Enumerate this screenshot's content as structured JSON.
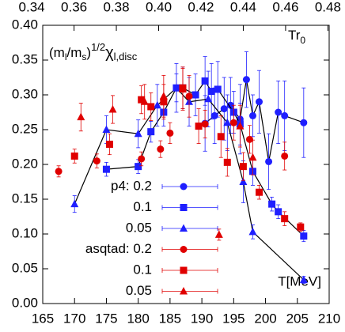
{
  "chart_data": {
    "type": "scatter",
    "xlim": [
      165,
      210
    ],
    "xticks": [
      165,
      170,
      175,
      180,
      185,
      190,
      195,
      200,
      205,
      210
    ],
    "x2lim": [
      0.3452,
      0.4806
    ],
    "x2ticks": [
      0.34,
      0.36,
      0.38,
      {
        "value": 0.4,
        "label": "0.40"
      },
      0.42,
      0.44,
      0.46,
      0.48
    ],
    "ylim": [
      0,
      0.4
    ],
    "yticks": [
      {
        "value": 0,
        "label": "0.00"
      },
      0.05,
      {
        "value": 0.1,
        "label": "0.10"
      },
      0.15,
      {
        "value": 0.2,
        "label": "0.20"
      },
      0.25,
      {
        "value": 0.3,
        "label": "0.30"
      },
      0.35,
      {
        "value": 0.4,
        "label": "0.40"
      }
    ],
    "y_label_parts": [
      "(m",
      "l",
      "/m",
      "s",
      ")",
      "1/2",
      "χ",
      "l,disc"
    ],
    "x2_label_parts": [
      "Tr",
      "0"
    ],
    "xlabel": "T[MeV]",
    "series": [
      {
        "name": "p4: 0.2",
        "color": "#1f1fff",
        "marker": "circle",
        "line_color": "#000000",
        "x": [
          190.5,
          192,
          193.5,
          194.5,
          196,
          197,
          198,
          199,
          200.5,
          202,
          203,
          206
        ],
        "values": [
          0.259,
          0.27,
          0.28,
          0.285,
          0.265,
          0.322,
          0.27,
          0.29,
          0.204,
          0.275,
          0.27,
          0.26
        ],
        "errors": [
          0.04,
          0.04,
          0.045,
          0.04,
          0.05,
          0.04,
          0.03,
          0.045,
          0.04,
          0.045,
          0.05,
          0.05
        ]
      },
      {
        "name": "0.1",
        "color": "#1f1fff",
        "marker": "square",
        "line_color": "#000000",
        "x": [
          175,
          180,
          182,
          184,
          186,
          187,
          189,
          190.5,
          191.5,
          192.5,
          195,
          196,
          198,
          201,
          202,
          206
        ],
        "values": [
          0.193,
          0.197,
          0.247,
          0.275,
          0.31,
          0.31,
          0.3,
          0.32,
          0.305,
          0.308,
          0.275,
          0.258,
          0.19,
          0.143,
          0.132,
          0.097
        ],
        "errors": [
          0.01,
          0.01,
          0.015,
          0.02,
          0.02,
          0.03,
          0.03,
          0.035,
          0.04,
          0.04,
          0.03,
          0.03,
          0.02,
          0.01,
          0.01,
          0.008
        ]
      },
      {
        "name": "0.05",
        "color": "#1f1fff",
        "marker": "triangle",
        "line_color": "#000000",
        "x": [
          170,
          175,
          180,
          183,
          186,
          188,
          191,
          194,
          196.5,
          198,
          206
        ],
        "values": [
          0.143,
          0.25,
          0.244,
          0.285,
          0.31,
          0.29,
          0.294,
          0.26,
          0.175,
          0.103,
          0.034
        ],
        "errors": [
          0.012,
          0.02,
          0.02,
          0.03,
          0.035,
          0.035,
          0.04,
          0.04,
          0.03,
          0.01,
          0.005
        ]
      },
      {
        "name": "asqtad: 0.2",
        "color": "#e00000",
        "marker": "circle",
        "line_color": null,
        "x": [
          167.5,
          173.5,
          180.5,
          183.5,
          185,
          188,
          190.5,
          195,
          197.5,
          203
        ],
        "values": [
          0.19,
          0.205,
          0.208,
          0.222,
          0.245,
          0.298,
          0.258,
          0.26,
          0.236,
          0.212
        ],
        "errors": [
          0.008,
          0.01,
          0.01,
          0.012,
          0.015,
          0.03,
          0.02,
          0.025,
          0.02,
          0.02
        ]
      },
      {
        "name": "0.1",
        "color": "#e00000",
        "marker": "square",
        "line_color": null,
        "x": [
          170,
          175.5,
          180.5,
          182,
          184,
          187,
          189.5,
          193,
          194,
          196.5,
          199,
          203,
          205.5
        ],
        "values": [
          0.212,
          0.229,
          0.293,
          0.283,
          0.29,
          0.31,
          0.255,
          0.24,
          0.203,
          0.197,
          0.16,
          0.122,
          0.11
        ],
        "errors": [
          0.01,
          0.015,
          0.02,
          0.02,
          0.025,
          0.03,
          0.025,
          0.03,
          0.02,
          0.02,
          0.01,
          0.01,
          0.006
        ]
      },
      {
        "name": "0.05",
        "color": "#e00000",
        "marker": "triangle",
        "line_color": null,
        "x": [
          171,
          176,
          181,
          184,
          187,
          192.7,
          196,
          198
        ],
        "values": [
          0.268,
          0.279,
          0.29,
          0.298,
          0.308,
          0.099,
          0.255,
          0.21
        ],
        "errors": [
          0.02,
          0.02,
          0.025,
          0.03,
          0.03,
          0.008,
          0.03,
          0.025
        ]
      }
    ]
  }
}
